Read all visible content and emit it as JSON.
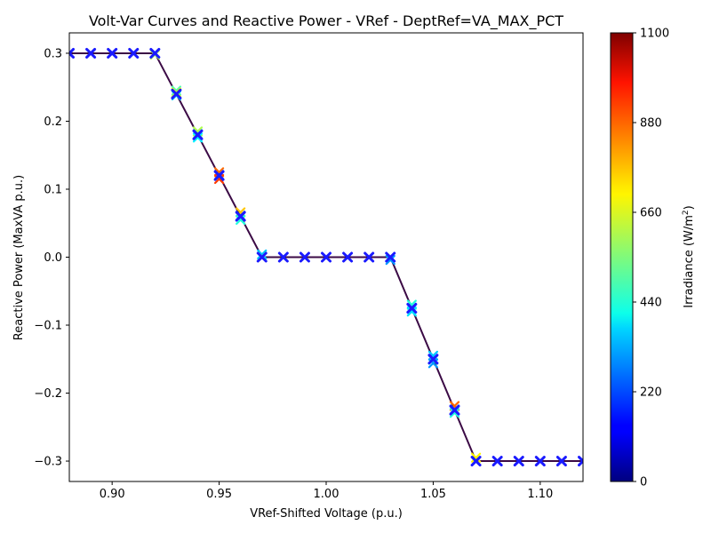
{
  "chart_data": {
    "type": "scatter",
    "title": "Volt-Var Curves and Reactive Power - VRef - DeptRef=VA_MAX_PCT",
    "xlabel": "VRef-Shifted Voltage (p.u.)",
    "ylabel": "Reactive Power (MaxVA p.u.)",
    "colorbar_label": "Irradiance (W/m",
    "colorbar_label_sup": "2",
    "colorbar_label_end": ")",
    "xlim": [
      0.88,
      1.12
    ],
    "ylim": [
      -0.33,
      0.33
    ],
    "clim": [
      0,
      1100
    ],
    "colormap": "jet",
    "x_ticks": [
      0.9,
      0.95,
      1.0,
      1.05,
      1.1
    ],
    "x_tick_labels": [
      "0.90",
      "0.95",
      "1.00",
      "1.05",
      "1.10"
    ],
    "y_ticks": [
      0.3,
      0.2,
      0.1,
      0.0,
      -0.1,
      -0.2,
      -0.3
    ],
    "y_tick_labels": [
      "0.3",
      "0.2",
      "0.1",
      "0.0",
      "−0.1",
      "−0.2",
      "−0.3"
    ],
    "c_ticks": [
      0,
      220,
      440,
      660,
      880,
      1100
    ],
    "c_tick_labels": [
      "0",
      "220",
      "440",
      "660",
      "880",
      "1100"
    ],
    "curve": {
      "x": [
        0.88,
        0.92,
        0.97,
        1.03,
        1.07,
        1.12
      ],
      "y": [
        0.3,
        0.3,
        0.0,
        0.0,
        -0.3,
        -0.3
      ],
      "color": "#3b0a45"
    },
    "measured_points": {
      "marker": "x",
      "color": "#1a1aff",
      "x": [
        0.88,
        0.89,
        0.9,
        0.91,
        0.92,
        0.93,
        0.94,
        0.95,
        0.96,
        0.97,
        0.98,
        0.99,
        1.0,
        1.01,
        1.02,
        1.03,
        1.04,
        1.05,
        1.06,
        1.07,
        1.08,
        1.09,
        1.1,
        1.11,
        1.12
      ],
      "y": [
        0.3,
        0.3,
        0.3,
        0.3,
        0.3,
        0.24,
        0.18,
        0.12,
        0.06,
        0.0,
        0.0,
        0.0,
        0.0,
        0.0,
        0.0,
        0.0,
        -0.075,
        -0.15,
        -0.225,
        -0.3,
        -0.3,
        -0.3,
        -0.3,
        -0.3,
        -0.3
      ]
    },
    "scatter_points": {
      "x": [
        0.88,
        0.89,
        0.9,
        0.91,
        0.92,
        0.92,
        0.93,
        0.93,
        0.93,
        0.94,
        0.94,
        0.94,
        0.95,
        0.95,
        0.95,
        0.96,
        0.96,
        0.96,
        0.97,
        0.97,
        0.98,
        0.99,
        1.0,
        1.01,
        1.02,
        1.03,
        1.03,
        1.04,
        1.04,
        1.04,
        1.05,
        1.05,
        1.05,
        1.06,
        1.06,
        1.06,
        1.07,
        1.07,
        1.08,
        1.09,
        1.1,
        1.11,
        1.12
      ],
      "y": [
        0.3,
        0.3,
        0.3,
        0.3,
        0.3,
        0.298,
        0.245,
        0.238,
        0.242,
        0.185,
        0.176,
        0.181,
        0.125,
        0.115,
        0.121,
        0.066,
        0.055,
        0.061,
        0.004,
        0.001,
        0.0,
        0.0,
        0.0,
        0.0,
        0.0,
        0.0,
        -0.004,
        -0.07,
        -0.08,
        -0.076,
        -0.145,
        -0.156,
        -0.151,
        -0.219,
        -0.229,
        -0.224,
        -0.295,
        -0.3,
        -0.3,
        -0.3,
        -0.3,
        -0.3,
        -0.3
      ],
      "irradiance": [
        300,
        300,
        300,
        300,
        300,
        600,
        500,
        350,
        700,
        600,
        400,
        300,
        850,
        900,
        200,
        750,
        450,
        200,
        350,
        500,
        300,
        300,
        300,
        300,
        300,
        800,
        300,
        450,
        380,
        300,
        350,
        300,
        450,
        850,
        450,
        300,
        700,
        500,
        300,
        300,
        300,
        300,
        300
      ]
    }
  }
}
